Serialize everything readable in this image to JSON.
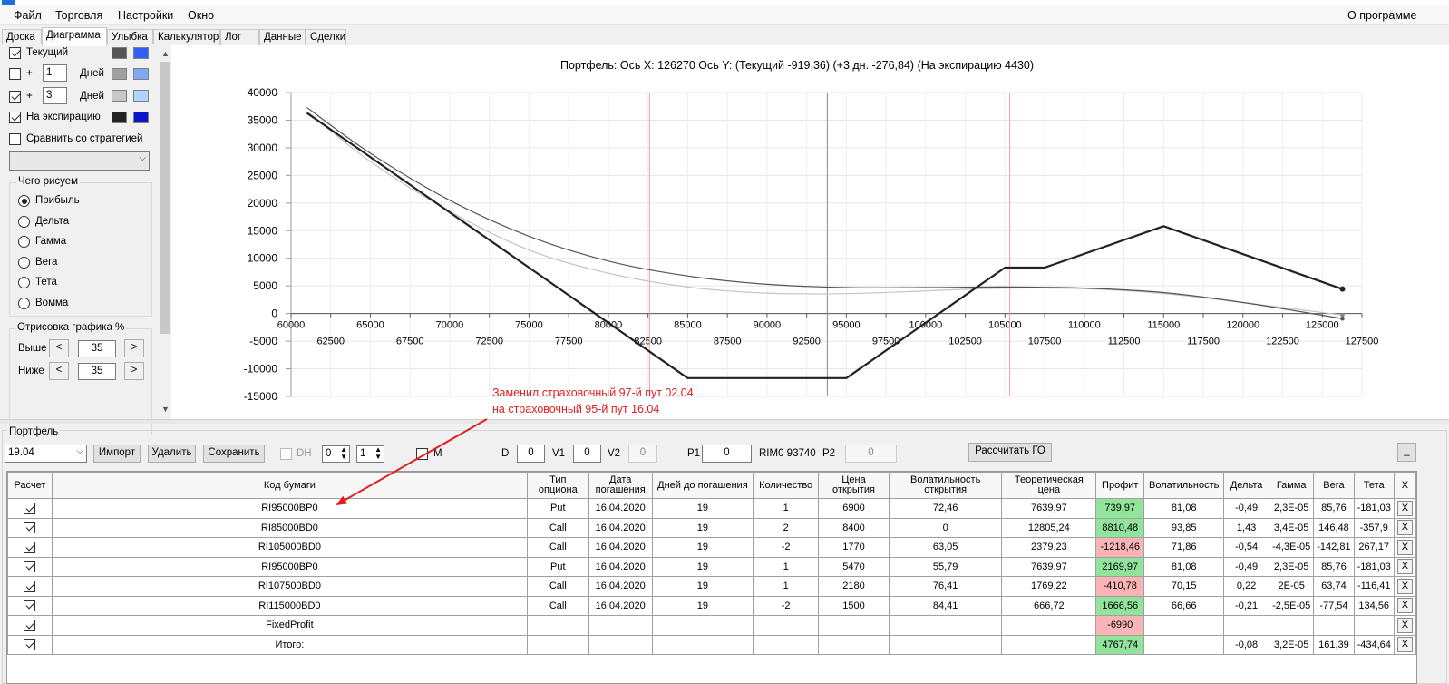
{
  "menu": {
    "items": [
      "Файл",
      "Торговля",
      "Настройки",
      "Окно"
    ],
    "about": "О программе"
  },
  "tabs": [
    "Доска",
    "Диаграмма",
    "Улыбка",
    "Калькулятор",
    "Лог",
    "Данные",
    "Сделки"
  ],
  "active_tab": "Диаграмма",
  "left_panel": {
    "current": {
      "label": "Текущий",
      "checked": true,
      "colors": [
        "#555555",
        "#2f5ff5"
      ]
    },
    "plus1": {
      "checked": false,
      "plus": "+",
      "value": "1",
      "unit": "Дней",
      "colors": [
        "#a0a0a0",
        "#7fa8f5"
      ]
    },
    "plus3": {
      "checked": true,
      "plus": "+",
      "value": "3",
      "unit": "Дней",
      "colors": [
        "#c8c8c8",
        "#aed4fb"
      ]
    },
    "expiry": {
      "label": "На экспирацию",
      "checked": true,
      "colors": [
        "#222222",
        "#0a14c8"
      ]
    },
    "compare": {
      "label": "Сравнить со стратегией",
      "checked": false
    },
    "draw_group": {
      "title": "Чего рисуем",
      "options": [
        "Прибыль",
        "Дельта",
        "Гамма",
        "Вега",
        "Тета",
        "Вомма"
      ],
      "selected": "Прибыль"
    },
    "chart_draw_group": {
      "title": "Отрисовка графика %",
      "above_label": "Выше",
      "above_value": "35",
      "below_label": "Ниже",
      "below_value": "35",
      "dec": "<",
      "inc": ">"
    }
  },
  "chart_data": {
    "type": "line",
    "title": "Портфель: Ось X: 126270 Ось Y:  (Текущий -919,36)  (+3 дн. -276,84)  (На экспирацию 4430)",
    "xlim": [
      60000,
      127500
    ],
    "ylim": [
      -15000,
      40000
    ],
    "x_ticks_upper": [
      "60000",
      "65000",
      "70000",
      "75000",
      "80000",
      "85000",
      "90000",
      "95000",
      "100000",
      "105000",
      "110000",
      "115000",
      "120000",
      "125000"
    ],
    "x_ticks_lower": [
      "62500",
      "67500",
      "72500",
      "77500",
      "82500",
      "87500",
      "92500",
      "97500",
      "102500",
      "107500",
      "112500",
      "117500",
      "122500",
      "127500"
    ],
    "y_ticks": [
      "40000",
      "35000",
      "30000",
      "25000",
      "20000",
      "15000",
      "10000",
      "5000",
      "0",
      "-5000",
      "-10000",
      "-15000"
    ],
    "vertical_markers": [
      {
        "x": 82600,
        "color": "#f0a0a0"
      },
      {
        "x": 93800,
        "color": "#8a8a8a"
      },
      {
        "x": 105300,
        "color": "#f0a0a0"
      }
    ],
    "series": [
      {
        "color": "#222222",
        "x": [
          61000,
          85000,
          95000,
          105000,
          107500,
          115000,
          126270
        ],
        "y": [
          36310,
          -11690,
          -11690,
          8310,
          8310,
          15810,
          4430
        ]
      },
      {
        "color": "#555555",
        "x": [
          61000,
          65000,
          70000,
          75000,
          80000,
          85000,
          90000,
          95000,
          100000,
          105000,
          110000,
          115000,
          120000,
          126270
        ],
        "y": [
          37300,
          29000,
          20500,
          14000,
          9500,
          6800,
          5300,
          4700,
          4700,
          4800,
          4600,
          3800,
          2000,
          -919.36
        ]
      },
      {
        "color": "#c4c4c4",
        "x": [
          61000,
          65000,
          70000,
          75000,
          80000,
          85000,
          90000,
          95000,
          100000,
          105000,
          110000,
          115000,
          120000,
          126270
        ],
        "y": [
          36600,
          27500,
          18500,
          11500,
          7300,
          4800,
          3700,
          3600,
          4100,
          4600,
          4500,
          3600,
          2000,
          -276.84
        ]
      }
    ]
  },
  "annotation": {
    "line1": "Заменил страховочный 97-й пут 02.04",
    "line2": "на страховочный 95-й пут 16.04"
  },
  "portfolio": {
    "title": "Портфель",
    "selector": "19.04",
    "import": "Импорт",
    "delete": "Удалить",
    "save": "Сохранить",
    "dh": {
      "label": "DH",
      "checked": false,
      "v1": "0",
      "v2": "1"
    },
    "m": {
      "label": "M",
      "checked": false
    },
    "d": {
      "label": "D",
      "value": "0"
    },
    "v1": {
      "label": "V1",
      "value": "0"
    },
    "v2": {
      "label": "V2",
      "value": "0"
    },
    "p1": {
      "label": "P1",
      "value": "0"
    },
    "rim": "RIM0 93740",
    "p2": {
      "label": "P2",
      "value": "0"
    },
    "calc_go": "Рассчитать ГО",
    "minimize": "_"
  },
  "table": {
    "columns": [
      "Расчет",
      "Код бумаги",
      "Тип опциона",
      "Дата погашения",
      "Дней до погашения",
      "Количество",
      "Цена открытия",
      "Волатильность открытия",
      "Теоретическая цена",
      "Профит",
      "Волатильность",
      "Дельта",
      "Гамма",
      "Вега",
      "Тета",
      "X"
    ],
    "rows": [
      {
        "code": "RI95000BP0",
        "type": "Put",
        "date": "16.04.2020",
        "days": "19",
        "qty": "1",
        "price": "6900",
        "vol_open": "72,46",
        "theo": "7639,97",
        "profit": "739,97",
        "profit_sign": "pos",
        "vol": "81,08",
        "delta": "-0,49",
        "gamma": "2,3E-05",
        "vega": "85,76",
        "theta": "-181,03",
        "x": "X"
      },
      {
        "code": "RI85000BD0",
        "type": "Call",
        "date": "16.04.2020",
        "days": "19",
        "qty": "2",
        "price": "8400",
        "vol_open": "0",
        "theo": "12805,24",
        "profit": "8810,48",
        "profit_sign": "pos",
        "vol": "93,85",
        "delta": "1,43",
        "gamma": "3,4E-05",
        "vega": "146,48",
        "theta": "-357,9",
        "x": "X"
      },
      {
        "code": "RI105000BD0",
        "type": "Call",
        "date": "16.04.2020",
        "days": "19",
        "qty": "-2",
        "price": "1770",
        "vol_open": "63,05",
        "theo": "2379,23",
        "profit": "-1218,46",
        "profit_sign": "neg",
        "vol": "71,86",
        "delta": "-0,54",
        "gamma": "-4,3E-05",
        "vega": "-142,81",
        "theta": "267,17",
        "x": "X"
      },
      {
        "code": "RI95000BP0",
        "type": "Put",
        "date": "16.04.2020",
        "days": "19",
        "qty": "1",
        "price": "5470",
        "vol_open": "55,79",
        "theo": "7639,97",
        "profit": "2169,97",
        "profit_sign": "pos",
        "vol": "81,08",
        "delta": "-0,49",
        "gamma": "2,3E-05",
        "vega": "85,76",
        "theta": "-181,03",
        "x": "X"
      },
      {
        "code": "RI107500BD0",
        "type": "Call",
        "date": "16.04.2020",
        "days": "19",
        "qty": "1",
        "price": "2180",
        "vol_open": "76,41",
        "theo": "1769,22",
        "profit": "-410,78",
        "profit_sign": "neg",
        "vol": "70,15",
        "delta": "0,22",
        "gamma": "2E-05",
        "vega": "63,74",
        "theta": "-116,41",
        "x": "X"
      },
      {
        "code": "RI115000BD0",
        "type": "Call",
        "date": "16.04.2020",
        "days": "19",
        "qty": "-2",
        "price": "1500",
        "vol_open": "84,41",
        "theo": "666,72",
        "profit": "1666,56",
        "profit_sign": "pos",
        "vol": "66,66",
        "delta": "-0,21",
        "gamma": "-2,5E-05",
        "vega": "-77,54",
        "theta": "134,56",
        "x": "X"
      },
      {
        "code": "FixedProfit",
        "type": "",
        "date": "",
        "days": "",
        "qty": "",
        "price": "",
        "vol_open": "",
        "theo": "",
        "profit": "-6990",
        "profit_sign": "neg",
        "vol": "",
        "delta": "",
        "gamma": "",
        "vega": "",
        "theta": "",
        "x": "X"
      },
      {
        "code": "Итого:",
        "type": "",
        "date": "",
        "days": "",
        "qty": "",
        "price": "",
        "vol_open": "",
        "theo": "",
        "profit": "4767,74",
        "profit_sign": "pos",
        "vol": "",
        "delta": "-0,08",
        "gamma": "3,2E-05",
        "vega": "161,39",
        "theta": "-434,64",
        "x": "X"
      }
    ]
  }
}
